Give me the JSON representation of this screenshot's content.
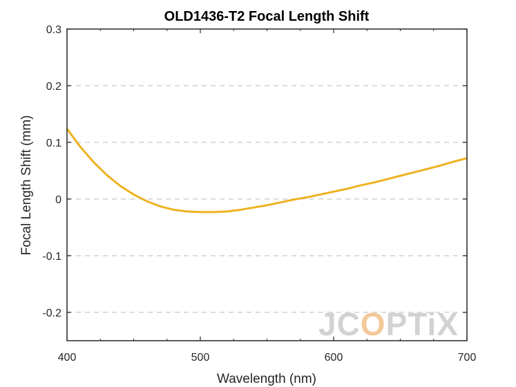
{
  "chart_data": {
    "type": "line",
    "title": "OLD1436-T2 Focal Length Shift",
    "xlabel": "Wavelength (nm)",
    "ylabel": "Focal Length Shift (mm)",
    "xlim": [
      400,
      700
    ],
    "ylim": [
      -0.25,
      0.3
    ],
    "xticks": [
      400,
      500,
      600,
      700
    ],
    "yticks": [
      -0.2,
      -0.1,
      0,
      0.1,
      0.2,
      0.3
    ],
    "ytick_labels": [
      "-0.2",
      "-0.1",
      "0",
      "0.1",
      "0.2",
      "0.3"
    ],
    "grid": "horizontal dashed",
    "series": [
      {
        "color": "#EDB120",
        "x": [
          400,
          410,
          420,
          430,
          440,
          450,
          460,
          470,
          480,
          490,
          500,
          510,
          520,
          530,
          540,
          550,
          560,
          570,
          580,
          590,
          600,
          610,
          620,
          630,
          640,
          650,
          660,
          670,
          680,
          690,
          700
        ],
        "y": [
          0.124,
          0.092,
          0.065,
          0.042,
          0.023,
          0.008,
          -0.004,
          -0.013,
          -0.019,
          -0.022,
          -0.023,
          -0.023,
          -0.022,
          -0.019,
          -0.015,
          -0.011,
          -0.006,
          -0.001,
          0.003,
          0.008,
          0.013,
          0.018,
          0.024,
          0.029,
          0.035,
          0.041,
          0.047,
          0.053,
          0.059,
          0.066,
          0.072
        ]
      }
    ]
  },
  "watermark": {
    "text_before": "JC",
    "text_accent": "O",
    "text_after": "PTiX"
  }
}
